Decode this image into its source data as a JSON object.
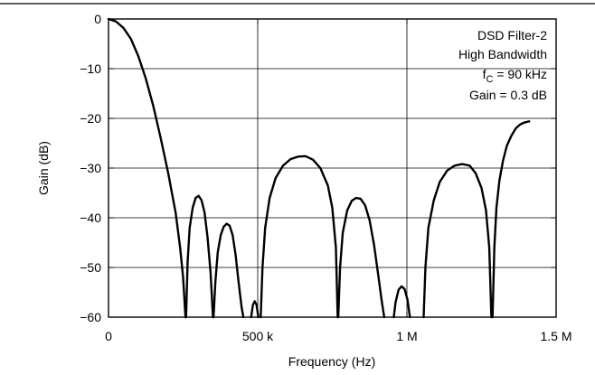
{
  "chart_data": {
    "type": "line",
    "title": "",
    "xlabel": "Frequency (Hz)",
    "ylabel": "Gain (dB)",
    "xlim": [
      0,
      1500000
    ],
    "ylim": [
      -60,
      0
    ],
    "grid": true,
    "x_ticks": [
      {
        "value": 0,
        "label": "0"
      },
      {
        "value": 500000,
        "label": "500 k"
      },
      {
        "value": 1000000,
        "label": "1 M"
      },
      {
        "value": 1500000,
        "label": "1.5 M"
      }
    ],
    "y_ticks": [
      {
        "value": 0,
        "label": "0"
      },
      {
        "value": -10,
        "label": "−10"
      },
      {
        "value": -20,
        "label": "−20"
      },
      {
        "value": -30,
        "label": "−30"
      },
      {
        "value": -40,
        "label": "−40"
      },
      {
        "value": -50,
        "label": "−50"
      },
      {
        "value": -60,
        "label": "−60"
      }
    ],
    "annotation": {
      "line1": "DSD Filter-2",
      "line2": "High Bandwidth",
      "line3_prefix": "f",
      "line3_sub": "C",
      "line3_suffix": " = 90 kHz",
      "line4": "Gain = 0.3 dB",
      "placement": "top-right"
    },
    "series": [
      {
        "color": "#000000",
        "lobes": [
          {
            "x": [
              0,
              25000,
              50000,
              75000,
              100000,
              125000,
              150000,
              175000,
              200000,
              225000,
              240000,
              250000,
              258000
            ],
            "y": [
              0,
              -0.5,
              -1.8,
              -4,
              -7.5,
              -12,
              -17.5,
              -24,
              -31,
              -39,
              -46,
              -52,
              -60
            ]
          },
          {
            "x": [
              260000,
              265000,
              272000,
              282000,
              292000,
              302000,
              312000,
              322000,
              332000,
              342000,
              350000
            ],
            "y": [
              -60,
              -49,
              -42,
              -38,
              -36,
              -35.6,
              -36.5,
              -39,
              -44,
              -51,
              -60
            ]
          },
          {
            "x": [
              352000,
              358000,
              366000,
              376000,
              386000,
              396000,
              406000,
              416000,
              426000,
              436000,
              446000,
              452000
            ],
            "y": [
              -60,
              -53,
              -47,
              -43.5,
              -41.8,
              -41.2,
              -41.6,
              -43.5,
              -47.5,
              -53,
              -58,
              -60
            ]
          },
          {
            "x": [
              478000,
              484000,
              490000,
              496000,
              502000
            ],
            "y": [
              -60,
              -57.5,
              -56.8,
              -57.5,
              -60
            ]
          },
          {
            "x": [
              510000,
              516000,
              525000,
              540000,
              560000,
              585000,
              610000,
              635000,
              660000,
              685000,
              710000,
              735000,
              750000,
              762000,
              768000
            ],
            "y": [
              -60,
              -50,
              -42,
              -36,
              -32,
              -29.5,
              -28.2,
              -27.7,
              -27.6,
              -28.3,
              -30,
              -33.5,
              -38,
              -46,
              -60
            ]
          },
          {
            "x": [
              770000,
              776000,
              785000,
              800000,
              815000,
              830000,
              845000,
              860000,
              875000,
              890000,
              905000,
              915000,
              924000
            ],
            "y": [
              -60,
              -50,
              -43,
              -38.5,
              -36.6,
              -36,
              -36.2,
              -37.5,
              -40.5,
              -45.5,
              -52,
              -56.5,
              -60
            ]
          },
          {
            "x": [
              956000,
              962000,
              972000,
              982000,
              992000,
              1002000,
              1010000
            ],
            "y": [
              -60,
              -57,
              -54.5,
              -53.8,
              -54.3,
              -56.5,
              -60
            ]
          },
          {
            "x": [
              1056000,
              1062000,
              1072000,
              1090000,
              1110000,
              1135000,
              1160000,
              1185000,
              1210000,
              1230000,
              1250000,
              1265000,
              1276000,
              1283000
            ],
            "y": [
              -60,
              -50,
              -42,
              -36.5,
              -32.8,
              -30.5,
              -29.5,
              -29.2,
              -29.5,
              -31,
              -34,
              -38.5,
              -46,
              -60
            ]
          },
          {
            "x": [
              1287000,
              1293000,
              1300000,
              1310000,
              1322000,
              1335000,
              1350000,
              1365000,
              1380000,
              1395000,
              1410000
            ],
            "y": [
              -60,
              -46,
              -38,
              -32.5,
              -28.5,
              -25.5,
              -23.5,
              -22,
              -21.2,
              -20.8,
              -20.6
            ]
          }
        ]
      }
    ]
  }
}
